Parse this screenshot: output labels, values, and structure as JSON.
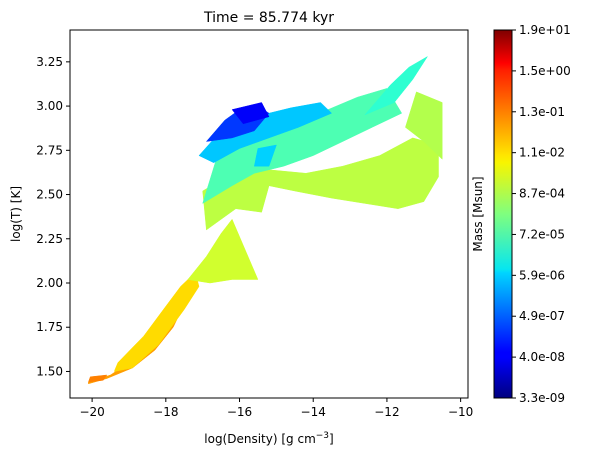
{
  "chart_data": {
    "type": "heatmap",
    "title": "Time = 85.774 kyr",
    "xlabel_main": "log(Density) [g cm",
    "xlabel_sup": "−3",
    "xlabel_close": "]",
    "ylabel": "log(T) [K]",
    "xlim": [
      -20.6,
      -9.8
    ],
    "ylim": [
      1.35,
      3.43
    ],
    "x_ticks": [
      -20,
      -18,
      -16,
      -14,
      -12,
      -10
    ],
    "x_tick_labels": [
      "−20",
      "−18",
      "−16",
      "−14",
      "−12",
      "−10"
    ],
    "y_ticks": [
      1.5,
      1.75,
      2.0,
      2.25,
      2.5,
      2.75,
      3.0,
      3.25
    ],
    "y_tick_labels": [
      "1.50",
      "1.75",
      "2.00",
      "2.25",
      "2.50",
      "2.75",
      "3.00",
      "3.25"
    ],
    "grid": false,
    "colormap": "jet",
    "colorbar": {
      "label": "Mass [Msun]",
      "scale": "log",
      "tick_labels": [
        "3.3e-09",
        "4.0e-08",
        "4.9e-07",
        "5.9e-06",
        "7.2e-05",
        "8.7e-04",
        "1.1e-02",
        "1.3e-01",
        "1.5e+00",
        "1.9e+01"
      ]
    },
    "regions": [
      {
        "polygon": [
          [
            -20.1,
            1.44
          ],
          [
            -19.5,
            1.48
          ],
          [
            -19.0,
            1.55
          ],
          [
            -18.5,
            1.66
          ],
          [
            -18.0,
            1.8
          ],
          [
            -17.6,
            1.93
          ],
          [
            -17.5,
            1.88
          ],
          [
            -17.8,
            1.75
          ],
          [
            -18.3,
            1.62
          ],
          [
            -18.9,
            1.52
          ],
          [
            -19.6,
            1.46
          ],
          [
            -20.1,
            1.43
          ]
        ],
        "level": 0.72
      },
      {
        "polygon": [
          [
            -20.1,
            1.44
          ],
          [
            -19.7,
            1.45
          ],
          [
            -19.6,
            1.48
          ],
          [
            -20.05,
            1.47
          ]
        ],
        "level": 0.75
      },
      {
        "polygon": [
          [
            -19.3,
            1.55
          ],
          [
            -18.6,
            1.7
          ],
          [
            -18.1,
            1.84
          ],
          [
            -17.6,
            1.98
          ],
          [
            -17.2,
            2.06
          ],
          [
            -17.1,
            1.98
          ],
          [
            -17.5,
            1.85
          ],
          [
            -18.2,
            1.65
          ],
          [
            -18.9,
            1.52
          ],
          [
            -19.4,
            1.5
          ]
        ],
        "level": 0.66
      },
      {
        "polygon": [
          [
            -17.4,
            2.02
          ],
          [
            -16.9,
            2.15
          ],
          [
            -16.5,
            2.28
          ],
          [
            -16.2,
            2.36
          ],
          [
            -15.5,
            2.02
          ],
          [
            -16.2,
            2.02
          ],
          [
            -16.8,
            2.0
          ]
        ],
        "level": 0.58
      },
      {
        "polygon": [
          [
            -16.9,
            2.3
          ],
          [
            -16.1,
            2.42
          ],
          [
            -15.4,
            2.4
          ],
          [
            -15.2,
            2.55
          ],
          [
            -14.5,
            2.52
          ],
          [
            -13.5,
            2.48
          ],
          [
            -12.6,
            2.45
          ],
          [
            -11.7,
            2.42
          ],
          [
            -11.0,
            2.46
          ],
          [
            -10.6,
            2.6
          ],
          [
            -10.6,
            2.78
          ],
          [
            -11.3,
            2.82
          ],
          [
            -12.2,
            2.72
          ],
          [
            -13.2,
            2.66
          ],
          [
            -14.2,
            2.62
          ],
          [
            -15.2,
            2.64
          ],
          [
            -16.2,
            2.62
          ],
          [
            -17.0,
            2.52
          ]
        ],
        "level": 0.56
      },
      {
        "polygon": [
          [
            -10.5,
            2.7
          ],
          [
            -10.5,
            3.02
          ],
          [
            -11.2,
            3.08
          ],
          [
            -11.5,
            2.88
          ],
          [
            -11.0,
            2.8
          ]
        ],
        "level": 0.55
      },
      {
        "polygon": [
          [
            -17.0,
            2.45
          ],
          [
            -16.2,
            2.55
          ],
          [
            -15.6,
            2.62
          ],
          [
            -14.8,
            2.66
          ],
          [
            -14.0,
            2.72
          ],
          [
            -13.2,
            2.8
          ],
          [
            -12.4,
            2.88
          ],
          [
            -11.6,
            2.96
          ],
          [
            -12.0,
            3.1
          ],
          [
            -12.8,
            3.05
          ],
          [
            -13.6,
            2.98
          ],
          [
            -14.4,
            2.92
          ],
          [
            -15.2,
            2.86
          ],
          [
            -16.0,
            2.8
          ],
          [
            -16.6,
            2.72
          ]
        ],
        "level": 0.45
      },
      {
        "polygon": [
          [
            -12.6,
            2.95
          ],
          [
            -11.9,
            3.12
          ],
          [
            -11.4,
            3.22
          ],
          [
            -10.9,
            3.28
          ],
          [
            -11.3,
            3.15
          ],
          [
            -11.8,
            3.02
          ]
        ],
        "level": 0.42
      },
      {
        "polygon": [
          [
            -17.1,
            2.72
          ],
          [
            -16.5,
            2.86
          ],
          [
            -15.9,
            2.92
          ],
          [
            -15.2,
            2.96
          ],
          [
            -14.6,
            2.99
          ],
          [
            -13.8,
            3.02
          ],
          [
            -13.5,
            2.96
          ],
          [
            -14.4,
            2.88
          ],
          [
            -15.2,
            2.82
          ],
          [
            -16.0,
            2.76
          ],
          [
            -16.7,
            2.68
          ]
        ],
        "level": 0.32
      },
      {
        "polygon": [
          [
            -15.6,
            2.66
          ],
          [
            -15.2,
            2.66
          ],
          [
            -15.0,
            2.78
          ],
          [
            -15.5,
            2.76
          ]
        ],
        "level": 0.33
      },
      {
        "polygon": [
          [
            -16.9,
            2.8
          ],
          [
            -16.4,
            2.92
          ],
          [
            -16.0,
            2.98
          ],
          [
            -15.5,
            3.0
          ],
          [
            -15.2,
            2.96
          ],
          [
            -15.6,
            2.86
          ],
          [
            -16.2,
            2.82
          ]
        ],
        "level": 0.18
      },
      {
        "polygon": [
          [
            -16.2,
            2.98
          ],
          [
            -15.4,
            3.02
          ],
          [
            -15.2,
            2.94
          ],
          [
            -15.9,
            2.9
          ]
        ],
        "level": 0.12
      }
    ]
  }
}
